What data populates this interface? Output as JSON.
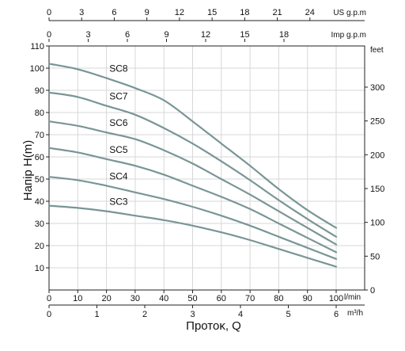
{
  "chart_data": {
    "type": "line",
    "title": "",
    "ylabel": "Напір H(m)",
    "xlabel": "Протоκ, Q",
    "grid": true,
    "legend": "inline labels on curves",
    "axes": {
      "x_lmin": {
        "unit": "l/min",
        "min": 0,
        "max": 100,
        "ticks": [
          0,
          10,
          20,
          30,
          40,
          50,
          60,
          70,
          80,
          90,
          100
        ]
      },
      "x_m3h": {
        "unit": "m³/h",
        "min": 0,
        "max": 6,
        "ticks": [
          0,
          1,
          2,
          3,
          4,
          5,
          6
        ]
      },
      "x_us_gpm": {
        "unit": "US g.p.m",
        "ticks": [
          0,
          3,
          6,
          9,
          12,
          15,
          18,
          21,
          24
        ]
      },
      "x_imp_gpm": {
        "unit": "Imp g.p.m",
        "ticks": [
          0,
          3,
          6,
          9,
          12,
          15,
          18
        ]
      },
      "y_m": {
        "min": 0,
        "max": 110,
        "ticks": [
          10,
          20,
          30,
          40,
          50,
          60,
          70,
          80,
          90,
          100,
          110
        ]
      },
      "y_feet": {
        "unit": "feet",
        "ticks": [
          0,
          50,
          100,
          150,
          200,
          250,
          300
        ]
      }
    },
    "series_color": "#7a9596",
    "x": [
      0,
      10,
      20,
      30,
      40,
      50,
      60,
      70,
      80,
      90,
      100
    ],
    "series": [
      {
        "name": "SC3",
        "values": [
          38,
          37,
          35.5,
          33.5,
          31.5,
          29,
          26,
          22.5,
          18.5,
          14.5,
          10.5
        ]
      },
      {
        "name": "SC4",
        "values": [
          51,
          49.5,
          47,
          44,
          41,
          37.5,
          33.5,
          29,
          24,
          19,
          14
        ]
      },
      {
        "name": "SC5",
        "values": [
          64,
          62,
          59,
          56,
          52,
          47,
          42,
          36.5,
          30,
          23.5,
          17
        ]
      },
      {
        "name": "SC6",
        "values": [
          76,
          74,
          71,
          68,
          63,
          57,
          50,
          43,
          35.5,
          28,
          20.5
        ]
      },
      {
        "name": "SC7",
        "values": [
          89,
          87,
          83,
          79,
          73,
          66,
          58,
          49.5,
          40.5,
          32,
          24
        ]
      },
      {
        "name": "SC8",
        "values": [
          102,
          99.5,
          95.5,
          91,
          85.5,
          76,
          66,
          56,
          45.5,
          36,
          28
        ]
      }
    ]
  }
}
